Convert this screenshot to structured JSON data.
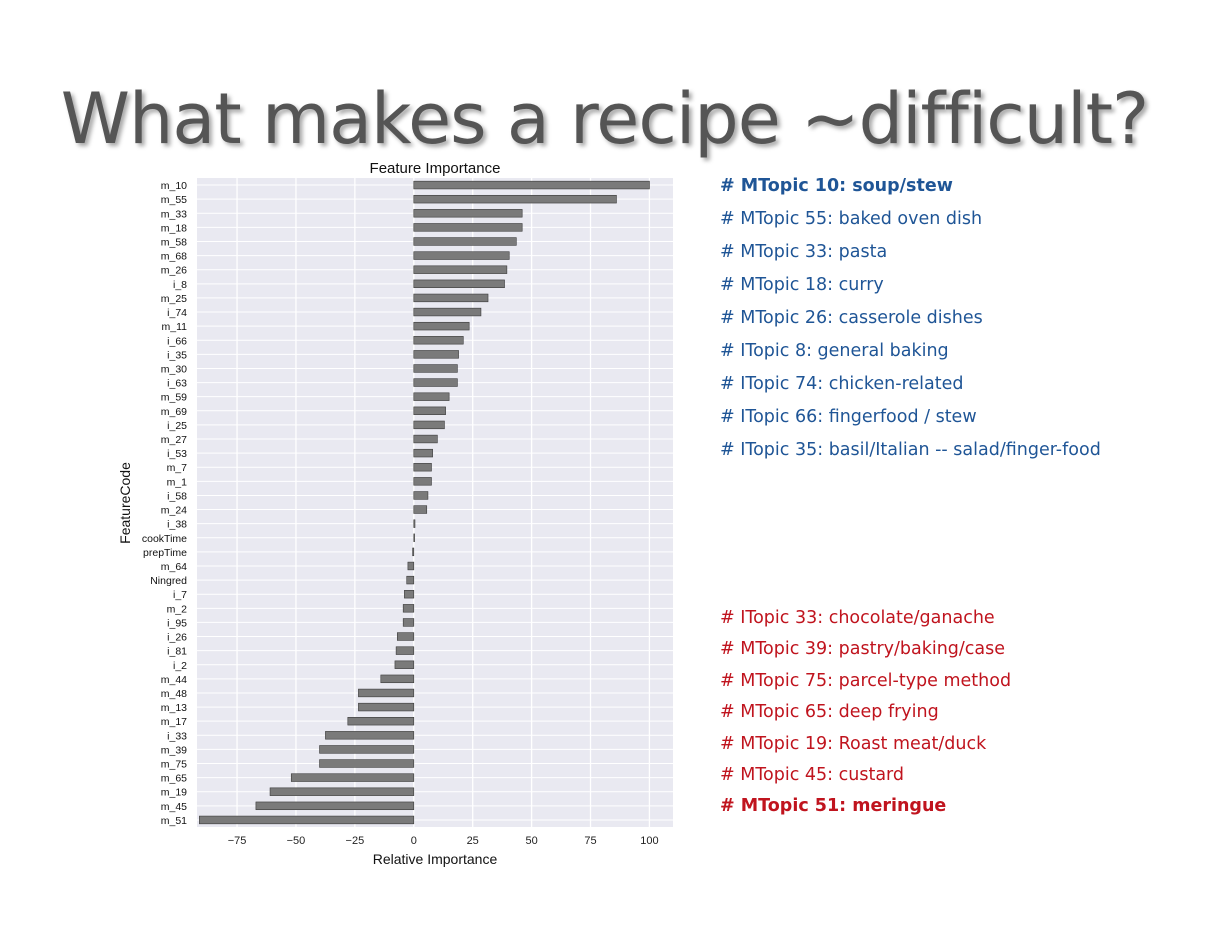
{
  "slide": {
    "title": "What makes a recipe ~difficult?"
  },
  "chart_data": {
    "type": "bar",
    "orientation": "horizontal",
    "title": "Feature Importance",
    "xlabel": "Relative Importance",
    "ylabel": "FeatureCode",
    "xlim": [
      -92,
      110
    ],
    "xticks": [
      -75,
      -50,
      -25,
      0,
      25,
      50,
      75,
      100
    ],
    "grid": true,
    "bar_color": "#7a7a7a",
    "categories": [
      "m_10",
      "m_55",
      "m_33",
      "m_18",
      "m_58",
      "m_68",
      "m_26",
      "i_8",
      "m_25",
      "i_74",
      "m_11",
      "i_66",
      "i_35",
      "m_30",
      "i_63",
      "m_59",
      "m_69",
      "i_25",
      "m_27",
      "i_53",
      "m_7",
      "m_1",
      "i_58",
      "m_24",
      "i_38",
      "cookTime",
      "prepTime",
      "m_64",
      "Ningred",
      "i_7",
      "m_2",
      "i_95",
      "i_26",
      "i_81",
      "i_2",
      "m_44",
      "m_48",
      "m_13",
      "m_17",
      "i_33",
      "m_39",
      "m_75",
      "m_65",
      "m_19",
      "m_45",
      "m_51"
    ],
    "values": [
      100,
      86,
      46,
      46,
      43.5,
      40.5,
      39.5,
      38.5,
      31.5,
      28.5,
      23.5,
      21,
      19,
      18.5,
      18.5,
      15,
      13.5,
      13,
      10,
      8,
      7.5,
      7.5,
      6,
      5.5,
      0.5,
      0,
      -0.5,
      -2.5,
      -3,
      -4,
      -4.5,
      -4.5,
      -7,
      -7.5,
      -8,
      -14,
      -23.5,
      -23.5,
      -28,
      -37.5,
      -40,
      -40,
      -52,
      -61,
      -67,
      -91
    ]
  },
  "positive_topics": [
    {
      "text": "# MTopic 10: soup/stew",
      "bold": true
    },
    {
      "text": "# MTopic 55: baked oven dish",
      "bold": false
    },
    {
      "text": "# MTopic 33: pasta",
      "bold": false
    },
    {
      "text": "# MTopic 18: curry",
      "bold": false
    },
    {
      "text": "# MTopic 26: casserole dishes",
      "bold": false
    },
    {
      "text": "# ITopic 8: general baking",
      "bold": false
    },
    {
      "text": "# ITopic 74: chicken-related",
      "bold": false
    },
    {
      "text": "# ITopic 66: fingerfood / stew",
      "bold": false
    },
    {
      "text": "# ITopic 35: basil/Italian -- salad/finger-food",
      "bold": false
    }
  ],
  "negative_topics": [
    {
      "text": "# ITopic 33: chocolate/ganache",
      "bold": false
    },
    {
      "text": "# MTopic 39: pastry/baking/case",
      "bold": false
    },
    {
      "text": "# MTopic 75: parcel-type method",
      "bold": false
    },
    {
      "text": "# MTopic 65: deep frying",
      "bold": false
    },
    {
      "text": "# MTopic 19: Roast meat/duck",
      "bold": false
    },
    {
      "text": "# MTopic 45: custard",
      "bold": false
    },
    {
      "text": "# MTopic 51: meringue",
      "bold": true
    }
  ]
}
